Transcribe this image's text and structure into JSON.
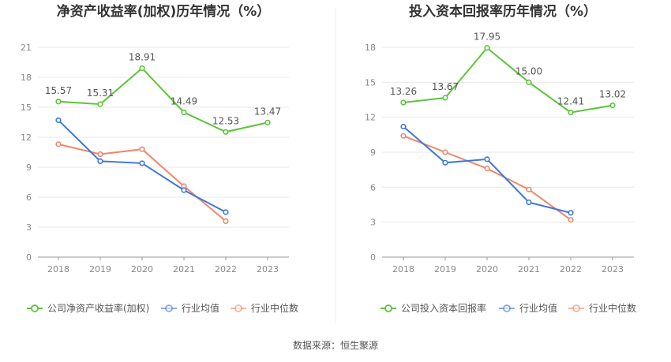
{
  "source": "数据来源：恒生聚源",
  "colors": {
    "company": "#5ac53a",
    "industry_avg": "#3d77d9",
    "industry_median": "#f0876a",
    "grid": "#e8e8e8",
    "axis": "#999999"
  },
  "chart_data": [
    {
      "type": "line",
      "title": "净资产收益率(加权)历年情况（%）",
      "categories": [
        "2018",
        "2019",
        "2020",
        "2021",
        "2022",
        "2023"
      ],
      "ylim": [
        0,
        21
      ],
      "yticks": [
        "0",
        "3",
        "6",
        "9",
        "12",
        "15",
        "18",
        "21"
      ],
      "grid": true,
      "legend_position": "bottom-left",
      "series": [
        {
          "name": "公司净资产收益率(加权)",
          "key": "company",
          "values": [
            15.57,
            15.31,
            18.91,
            14.49,
            12.53,
            13.47
          ],
          "labels": [
            "15.57",
            "15.31",
            "18.91",
            "14.49",
            "12.53",
            "13.47"
          ]
        },
        {
          "name": "行业均值",
          "key": "industry_avg",
          "values": [
            13.7,
            9.6,
            9.4,
            6.7,
            4.5,
            null
          ]
        },
        {
          "name": "行业中位数",
          "key": "industry_median",
          "values": [
            11.3,
            10.3,
            10.8,
            7.1,
            3.6,
            null
          ]
        }
      ]
    },
    {
      "type": "line",
      "title": "投入资本回报率历年情况（%）",
      "categories": [
        "2018",
        "2019",
        "2020",
        "2021",
        "2022",
        "2023"
      ],
      "ylim": [
        0,
        18
      ],
      "yticks": [
        "0",
        "3",
        "6",
        "9",
        "12",
        "15",
        "18"
      ],
      "grid": true,
      "legend_position": "bottom-left",
      "series": [
        {
          "name": "公司投入资本回报率",
          "key": "company",
          "values": [
            13.26,
            13.67,
            17.95,
            15.0,
            12.41,
            13.02
          ],
          "labels": [
            "13.26",
            "13.67",
            "17.95",
            "15.00",
            "12.41",
            "13.02"
          ]
        },
        {
          "name": "行业均值",
          "key": "industry_avg",
          "values": [
            11.2,
            8.1,
            8.4,
            4.7,
            3.8,
            null
          ]
        },
        {
          "name": "行业中位数",
          "key": "industry_median",
          "values": [
            10.4,
            9.0,
            7.6,
            5.8,
            3.2,
            null
          ]
        }
      ]
    }
  ]
}
